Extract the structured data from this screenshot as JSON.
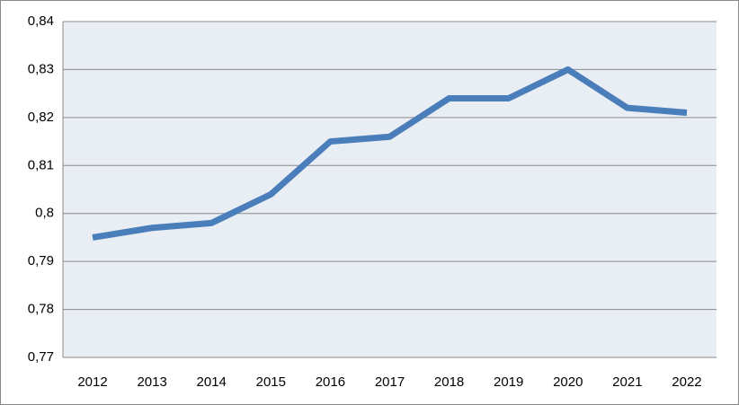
{
  "chart_data": {
    "type": "line",
    "categories": [
      "2012",
      "2013",
      "2014",
      "2015",
      "2016",
      "2017",
      "2018",
      "2019",
      "2020",
      "2021",
      "2022"
    ],
    "series": [
      {
        "color": "#4a7ebb",
        "values": [
          0.795,
          0.797,
          0.798,
          0.804,
          0.815,
          0.816,
          0.824,
          0.824,
          0.83,
          0.822,
          0.821
        ]
      }
    ],
    "ylim": [
      0.77,
      0.84
    ],
    "yticks": [
      {
        "value": 0.77,
        "label": "0,77"
      },
      {
        "value": 0.78,
        "label": "0,78"
      },
      {
        "value": 0.79,
        "label": "0,79"
      },
      {
        "value": 0.8,
        "label": "0,8"
      },
      {
        "value": 0.81,
        "label": "0,81"
      },
      {
        "value": 0.82,
        "label": "0,82"
      },
      {
        "value": 0.83,
        "label": "0,83"
      },
      {
        "value": 0.84,
        "label": "0,84"
      }
    ],
    "grid": true
  }
}
